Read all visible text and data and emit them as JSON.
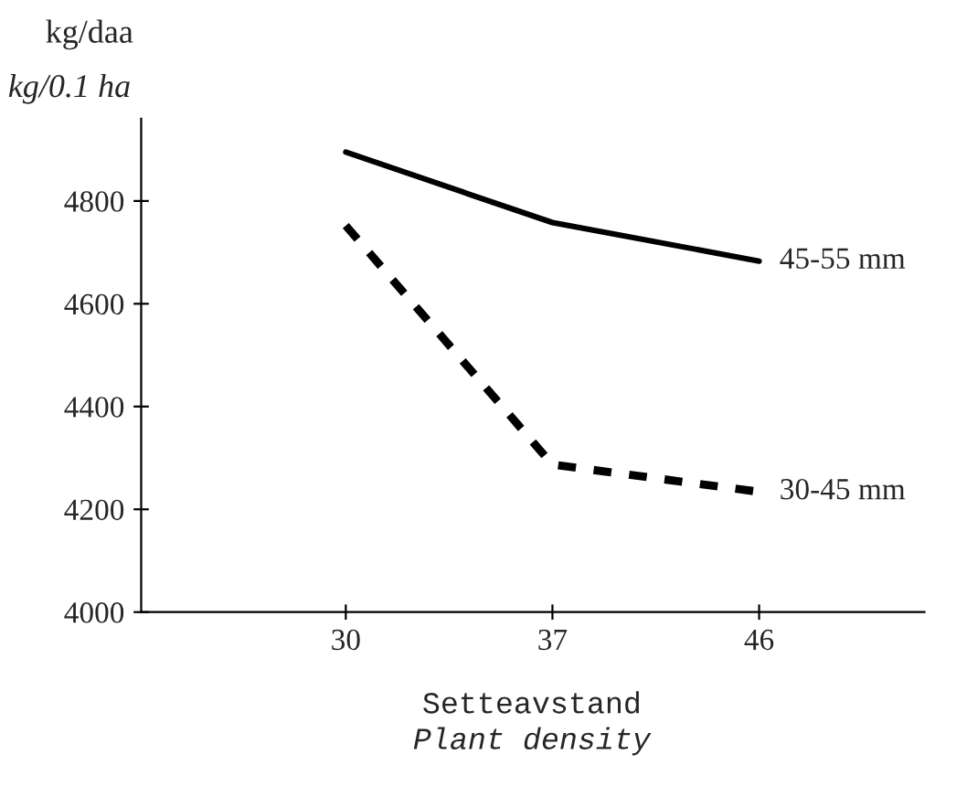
{
  "chart_data": {
    "type": "line",
    "xlabel": "Setteavstand\nPlant density",
    "ylabel": "kg/daa\nkg/0.1 ha",
    "categories": [
      "30",
      "37",
      "46"
    ],
    "series": [
      {
        "name": "45-55 mm",
        "color": "#000000",
        "line_style": "solid",
        "values": [
          4895,
          4758,
          4683
        ]
      },
      {
        "name": "30-45 mm",
        "color": "#000000",
        "line_style": "dashed",
        "values": [
          4752,
          4287,
          4234
        ]
      }
    ],
    "ylim": [
      4000,
      4960
    ],
    "yticks": [
      4000,
      4200,
      4400,
      4600,
      4800
    ],
    "grid": false,
    "legend": false,
    "marker": "none"
  }
}
